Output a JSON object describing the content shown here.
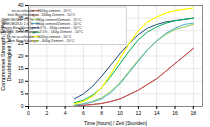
{
  "chart_data": {
    "type": "line",
    "xlabel": "Time [hours] / Zeit [Stunden]",
    "ylabel": "Compressive Strength [MPa]\nDruckfestigkeit [MPa]",
    "xlim": [
      0,
      19
    ],
    "ylim": [
      0,
      40
    ],
    "xticks": [
      0,
      2,
      4,
      6,
      8,
      10,
      12,
      14,
      16,
      18
    ],
    "yticks": [
      0,
      5,
      10,
      15,
      20,
      25,
      30,
      35,
      40
    ],
    "grid": true,
    "legend": "upper left",
    "series": [
      {
        "name": "no accelerator - 160kg cement - 10°C",
        "color": "#c0504d",
        "line_style": "solid",
        "x": [
          5.0,
          6.0,
          7.0,
          8.0,
          9.0,
          10.0,
          12.0,
          14.0,
          16.0,
          18.0
        ],
        "values": [
          0.3,
          0.5,
          0.8,
          1.2,
          2.0,
          3.0,
          6.5,
          11.0,
          17.0,
          23.0
        ]
      },
      {
        "name": "kein Beschleuniger - 160kg Zement - 10°C",
        "color": "#c0504d",
        "line_style": "dashed",
        "x": [
          5.0,
          6.0,
          7.0,
          8.0,
          9.0,
          10.0,
          12.0,
          14.0,
          16.0,
          18.0
        ],
        "values": [
          0.3,
          0.5,
          0.8,
          1.2,
          2.0,
          3.0,
          6.5,
          11.0,
          17.0,
          23.0
        ]
      },
      {
        "name": "RHEOBUILD 1:3 % - 160g cement/Zement - 15°C",
        "color": "#92d050",
        "line_style": "solid",
        "x": [
          5.0,
          6.0,
          7.0,
          8.0,
          9.0,
          10.0,
          11.0,
          12.0,
          13.0,
          14.0,
          15.0,
          16.0,
          17.0,
          18.0
        ],
        "values": [
          0.5,
          1.0,
          2.0,
          3.5,
          6.0,
          9.5,
          14.0,
          18.5,
          22.5,
          26.0,
          28.5,
          30.5,
          31.5,
          32.5
        ]
      },
      {
        "name": "RHEOBUILD 1:4 % - 160g cement/Zement - 10°C",
        "color": "#4bacc6",
        "line_style": "solid",
        "x": [
          5.0,
          6.0,
          7.0,
          8.0,
          9.0,
          10.0,
          11.0,
          12.0,
          13.0,
          14.0,
          15.0,
          16.0,
          17.0,
          18.0
        ],
        "values": [
          0.5,
          1.0,
          1.8,
          3.0,
          5.5,
          9.0,
          13.5,
          18.0,
          22.5,
          26.0,
          29.0,
          31.0,
          32.5,
          33.0
        ]
      },
      {
        "name": "Experi-Beschleuniger 1:3 % - 160g cement - 10°C",
        "color": "#1f497d",
        "line_style": "solid",
        "x": [
          5.0,
          6.0,
          7.0,
          8.0,
          9.0,
          10.0,
          11.0,
          12.0,
          13.0,
          14.0,
          15.0,
          16.0,
          17.0,
          18.0
        ],
        "values": [
          3.0,
          5.0,
          8.0,
          12.0,
          16.5,
          21.0,
          25.0,
          28.5,
          31.0,
          32.5,
          33.5,
          34.0,
          34.5,
          35.0
        ]
      },
      {
        "name": "kmbined. Beschleuniger 2:1% - 160g Zement - 10°C",
        "color": "#00b050",
        "line_style": "solid",
        "x": [
          5.0,
          6.0,
          7.0,
          8.0,
          9.0,
          10.0,
          11.0,
          12.0,
          13.0,
          14.0,
          15.0,
          16.0,
          17.0,
          18.0
        ],
        "values": [
          1.5,
          2.5,
          4.5,
          7.5,
          12.0,
          17.0,
          22.0,
          26.5,
          29.5,
          31.5,
          33.0,
          34.0,
          34.5,
          35.0
        ]
      },
      {
        "name": "no accelerator - 600kg cement - 10°C",
        "color": "#ffff00",
        "line_style": "solid",
        "x": [
          5.0,
          6.0,
          7.0,
          8.0,
          9.0,
          10.0,
          11.0,
          12.0,
          13.0,
          14.0,
          15.0,
          16.0,
          17.0,
          18.0
        ],
        "values": [
          1.0,
          2.0,
          4.0,
          7.5,
          13.0,
          19.0,
          25.0,
          30.0,
          33.5,
          35.5,
          37.0,
          38.0,
          38.5,
          39.0
        ]
      },
      {
        "name": "kein Beschleuniger - 600g Zement - 10°C",
        "color": "#ffff00",
        "line_style": "dashed",
        "x": [
          5.0,
          6.0,
          7.0,
          8.0,
          9.0,
          10.0,
          11.0,
          12.0,
          13.0,
          14.0,
          15.0,
          16.0,
          17.0,
          18.0
        ],
        "values": [
          1.0,
          2.0,
          4.0,
          7.5,
          13.0,
          19.0,
          25.0,
          30.0,
          33.5,
          35.5,
          37.0,
          38.0,
          38.5,
          39.0
        ]
      }
    ]
  }
}
